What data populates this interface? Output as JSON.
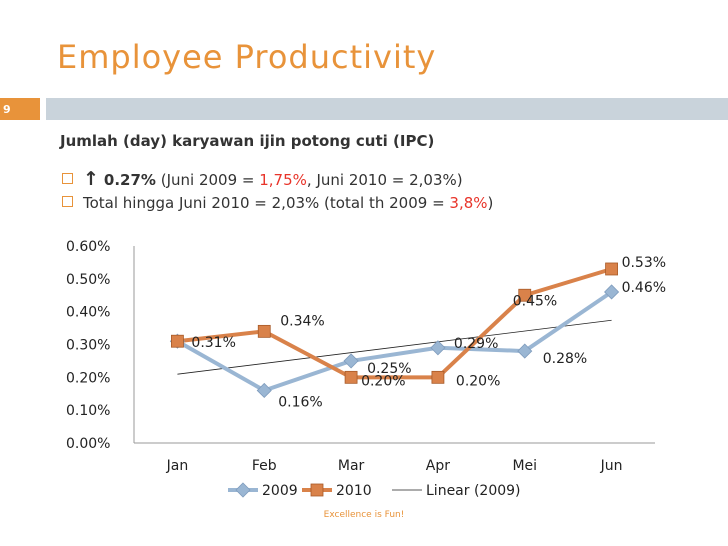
{
  "slide": {
    "title": "Employee Productivity",
    "number": "9",
    "heading": "Jumlah (day) karyawan ijin potong cuti (IPC)",
    "bullet1": {
      "arrow": "↑",
      "value": "0.27%",
      "pre": " (Juni 2009 = ",
      "highlight": "1,75%",
      "post": ", Juni 2010 = 2,03%)"
    },
    "bullet2": {
      "pre": "Total hingga Juni 2010 = 2,03% (total th 2009 = ",
      "highlight": "3,8%",
      "post": ")"
    },
    "footer": "Excellence is Fun!"
  },
  "chart_data": {
    "type": "line",
    "categories": [
      "Jan",
      "Feb",
      "Mar",
      "Apr",
      "Mei",
      "Jun"
    ],
    "ylim": [
      0,
      0.6
    ],
    "yticks": [
      "0.00%",
      "0.10%",
      "0.20%",
      "0.30%",
      "0.40%",
      "0.50%",
      "0.60%"
    ],
    "series": [
      {
        "name": "2009",
        "values": [
          0.31,
          0.16,
          0.25,
          0.29,
          0.28,
          0.46
        ],
        "labels": [
          "0.31%",
          "0.16%",
          "0.25%",
          "0.29%",
          "0.28%",
          "0.46%"
        ],
        "color": "#9ab6d3",
        "marker": "diamond"
      },
      {
        "name": "2010",
        "values": [
          0.31,
          0.34,
          0.2,
          0.2,
          0.45,
          0.53
        ],
        "labels": [
          "",
          "0.34%",
          "0.20%",
          "0.20%",
          "0.45%",
          "0.53%"
        ],
        "color": "#d9824a",
        "marker": "square"
      }
    ],
    "trendline": {
      "name": "Linear (2009)",
      "color": "#222222"
    },
    "legend": "bottom",
    "grid": false
  }
}
